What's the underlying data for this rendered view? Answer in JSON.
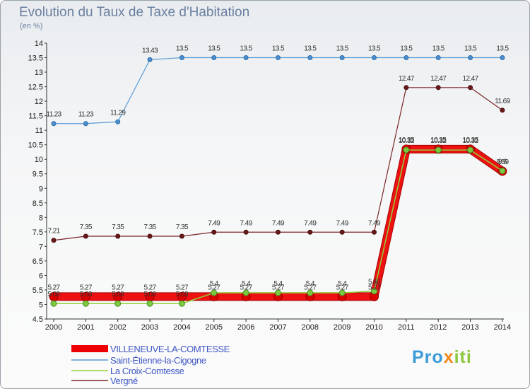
{
  "title": "Evolution du Taux de Taxe d'Habitation",
  "subtitle": "(en %)",
  "logo": {
    "part1": "Pro",
    "part2": "x",
    "part3": "iti"
  },
  "chart_data": {
    "type": "line",
    "title": "Evolution du Taux de Taxe d'Habitation",
    "ylabel": "(en %)",
    "xlabel": "",
    "ylim": [
      4.5,
      14
    ],
    "ytick_step": 0.5,
    "grid": false,
    "legend_position": "bottom-left",
    "categories": [
      "2000",
      "2001",
      "2002",
      "2003",
      "2004",
      "2005",
      "2006",
      "2007",
      "2008",
      "2009",
      "2010",
      "2011",
      "2012",
      "2013",
      "2014"
    ],
    "series": [
      {
        "name": "VILLENEUVE-LA-COMTESSE",
        "color": "#ee0000",
        "values": [
          5.27,
          5.27,
          5.27,
          5.27,
          5.27,
          5.27,
          5.27,
          5.27,
          5.27,
          5.27,
          5.27,
          10.35,
          10.35,
          10.35,
          9.59
        ],
        "labels": [
          "5.27",
          "5.27",
          "5.27",
          "5.27",
          "5.27",
          "5.27",
          "5.27",
          "5.27",
          "5.27",
          "5.27",
          "5.27",
          "10.35",
          "10.35",
          "10.35",
          "9.59"
        ]
      },
      {
        "name": "Saint-Étienne-la-Cigogne",
        "color": "#5b9bd5",
        "values": [
          11.23,
          11.23,
          11.29,
          13.43,
          13.5,
          13.5,
          13.5,
          13.5,
          13.5,
          13.5,
          13.5,
          13.5,
          13.5,
          13.5,
          13.5
        ],
        "labels": [
          "11.23",
          "11.23",
          "11.29",
          "13.43",
          "13.5",
          "13.5",
          "13.5",
          "13.5",
          "13.5",
          "13.5",
          "13.5",
          "13.5",
          "13.5",
          "13.5",
          "13.5"
        ]
      },
      {
        "name": "La Croix-Comtesse",
        "color": "#8fd13a",
        "values": [
          5.03,
          5.03,
          5.03,
          5.03,
          5.03,
          5.4,
          5.4,
          5.4,
          5.4,
          5.4,
          5.46,
          10.32,
          10.32,
          10.32,
          9.6
        ],
        "labels": [
          "5.03",
          "5.03",
          "5.03",
          "5.03",
          "5.03",
          "5.4",
          "5.4",
          "5.4",
          "5.4",
          "5.4",
          "5.46",
          "10.32",
          "10.32",
          "10.32",
          "9.6"
        ]
      },
      {
        "name": "Vergné",
        "color": "#7b2626",
        "values": [
          7.21,
          7.35,
          7.35,
          7.35,
          7.35,
          7.49,
          7.49,
          7.49,
          7.49,
          7.49,
          7.49,
          12.47,
          12.47,
          12.47,
          11.69
        ],
        "labels": [
          "7.21",
          "7.35",
          "7.35",
          "7.35",
          "7.35",
          "7.49",
          "7.49",
          "7.49",
          "7.49",
          "7.49",
          "7.49",
          "12.47",
          "12.47",
          "12.47",
          "11.69"
        ]
      }
    ]
  }
}
